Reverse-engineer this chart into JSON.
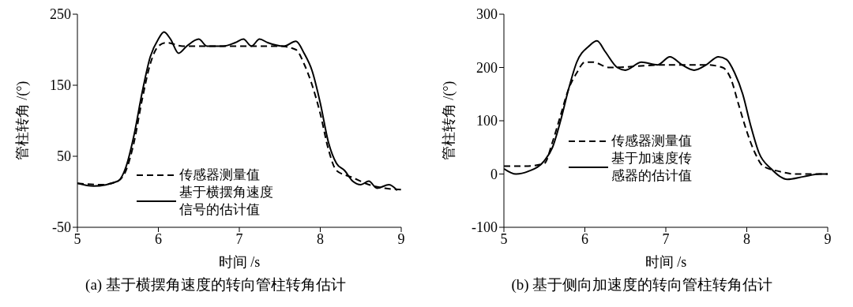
{
  "chart_data": [
    {
      "type": "line",
      "title": "(a) 基于横摆角速度的转向管柱转角估计",
      "xlabel": "时间 /s",
      "ylabel": "管柱转角 /(°)",
      "xlim": [
        5,
        9
      ],
      "xticks": [
        5,
        6,
        7,
        8,
        9
      ],
      "ylim": [
        -50,
        250
      ],
      "yticks": [
        -50,
        50,
        150,
        250
      ],
      "grid": false,
      "legend": "bottom",
      "marker": "none",
      "series": [
        {
          "name": "传感器测量值",
          "color": "#000000",
          "line_style": "dashed",
          "x": [
            5,
            5.3,
            5.5,
            5.6,
            5.7,
            5.8,
            5.9,
            6.0,
            6.1,
            6.3,
            7.0,
            7.5,
            7.7,
            7.8,
            7.9,
            8.0,
            8.1,
            8.2,
            8.4,
            8.6,
            8.8,
            9.0
          ],
          "values": [
            12,
            10,
            15,
            30,
            70,
            130,
            180,
            205,
            210,
            205,
            205,
            205,
            200,
            180,
            150,
            110,
            60,
            30,
            20,
            10,
            5,
            3
          ]
        },
        {
          "name": "基于横摆角速度信号的估计值",
          "color": "#000000",
          "line_style": "solid",
          "x": [
            5,
            5.2,
            5.5,
            5.6,
            5.7,
            5.8,
            5.9,
            6.0,
            6.07,
            6.15,
            6.25,
            6.35,
            6.5,
            6.6,
            6.8,
            6.95,
            7.05,
            7.15,
            7.25,
            7.35,
            7.55,
            7.7,
            7.8,
            7.9,
            8.0,
            8.1,
            8.2,
            8.3,
            8.4,
            8.5,
            8.6,
            8.7,
            8.85,
            8.95
          ],
          "values": [
            12,
            8,
            15,
            35,
            80,
            140,
            190,
            215,
            225,
            215,
            195,
            205,
            215,
            205,
            205,
            210,
            215,
            205,
            215,
            210,
            205,
            212,
            195,
            170,
            125,
            70,
            40,
            30,
            15,
            10,
            15,
            5,
            10,
            2
          ]
        }
      ]
    },
    {
      "type": "line",
      "title": "(b) 基于侧向加速度的转向管柱转角估计",
      "xlabel": "时间 /s",
      "ylabel": "管柱转角 /(°)",
      "xlim": [
        5,
        9
      ],
      "xticks": [
        5,
        6,
        7,
        8,
        9
      ],
      "ylim": [
        -100,
        300
      ],
      "yticks": [
        -100,
        0,
        100,
        200,
        300
      ],
      "grid": false,
      "legend": "left",
      "marker": "none",
      "series": [
        {
          "name": "传感器测量值",
          "color": "#000000",
          "line_style": "dashed",
          "x": [
            5,
            5.3,
            5.5,
            5.6,
            5.7,
            5.8,
            5.9,
            6.0,
            6.1,
            6.3,
            7.0,
            7.5,
            7.7,
            7.8,
            7.9,
            8.0,
            8.1,
            8.2,
            8.4,
            8.6,
            8.8,
            9.0
          ],
          "values": [
            15,
            15,
            20,
            60,
            110,
            160,
            190,
            210,
            210,
            200,
            205,
            205,
            200,
            180,
            130,
            80,
            40,
            15,
            5,
            0,
            0,
            0
          ]
        },
        {
          "name": "基于加速度传感器的估计值",
          "color": "#000000",
          "line_style": "solid",
          "x": [
            5,
            5.15,
            5.3,
            5.5,
            5.6,
            5.7,
            5.8,
            5.9,
            6.05,
            6.15,
            6.25,
            6.4,
            6.5,
            6.7,
            6.9,
            7.05,
            7.2,
            7.35,
            7.5,
            7.65,
            7.75,
            7.85,
            7.95,
            8.05,
            8.15,
            8.3,
            8.5,
            8.7,
            8.9,
            9.0
          ],
          "values": [
            10,
            0,
            5,
            25,
            50,
            100,
            160,
            210,
            240,
            250,
            230,
            200,
            195,
            210,
            205,
            220,
            205,
            195,
            205,
            220,
            215,
            190,
            150,
            90,
            40,
            10,
            -10,
            -5,
            0,
            0
          ]
        }
      ]
    }
  ]
}
